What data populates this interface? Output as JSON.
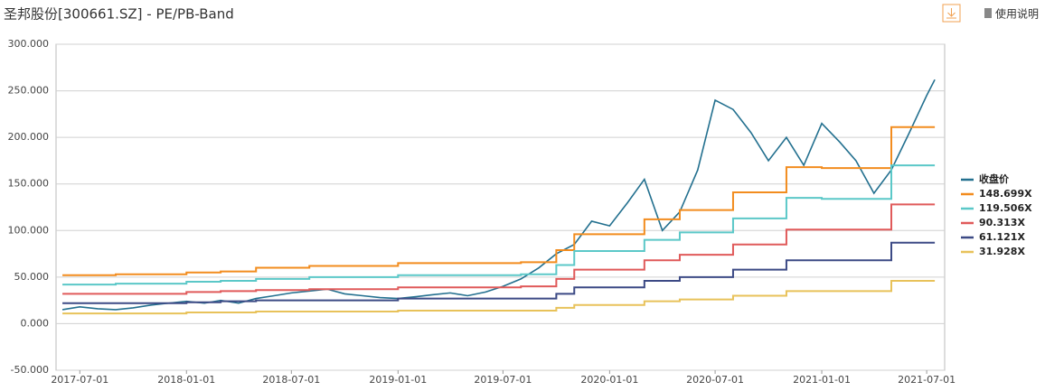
{
  "chart_data": {
    "type": "line",
    "title": "圣邦股份[300661.SZ] - PE/PB-Band",
    "toolbar": {
      "help": "使用说明"
    },
    "x": [
      "2017-06-01",
      "2017-07-01",
      "2017-08-01",
      "2017-09-01",
      "2017-10-01",
      "2017-11-01",
      "2017-12-01",
      "2018-01-01",
      "2018-02-01",
      "2018-03-01",
      "2018-04-01",
      "2018-05-01",
      "2018-06-01",
      "2018-07-01",
      "2018-08-01",
      "2018-09-01",
      "2018-10-01",
      "2018-11-01",
      "2018-12-01",
      "2019-01-01",
      "2019-02-01",
      "2019-03-01",
      "2019-04-01",
      "2019-05-01",
      "2019-06-01",
      "2019-07-01",
      "2019-08-01",
      "2019-09-01",
      "2019-10-01",
      "2019-11-01",
      "2019-12-01",
      "2020-01-01",
      "2020-02-01",
      "2020-03-01",
      "2020-04-01",
      "2020-05-01",
      "2020-06-01",
      "2020-07-01",
      "2020-08-01",
      "2020-09-01",
      "2020-10-01",
      "2020-11-01",
      "2020-12-01",
      "2021-01-01",
      "2021-02-01",
      "2021-03-01",
      "2021-04-01",
      "2021-05-01",
      "2021-06-01",
      "2021-07-01",
      "2021-07-15"
    ],
    "xlim": [
      "2017-05-21",
      "2021-08-01"
    ],
    "xticks": [
      "2017-07-01",
      "2018-01-01",
      "2018-07-01",
      "2019-01-01",
      "2019-07-01",
      "2020-01-01",
      "2020-07-01",
      "2021-01-01",
      "2021-07-01"
    ],
    "ylim": [
      -50,
      300
    ],
    "yticks": [
      {
        "value": -50,
        "label": "-50.000"
      },
      {
        "value": 0,
        "label": "0.000"
      },
      {
        "value": 50,
        "label": "50.000"
      },
      {
        "value": 100,
        "label": "100.000"
      },
      {
        "value": 150,
        "label": "150.000"
      },
      {
        "value": 200,
        "label": "200.000"
      },
      {
        "value": 250,
        "label": "250.000"
      },
      {
        "value": 300,
        "label": "300.000"
      }
    ],
    "grid": true,
    "legend": "right",
    "series": [
      {
        "name": "收盘价",
        "color": "#23708f",
        "values": [
          15,
          18,
          16,
          15,
          17,
          20,
          22,
          24,
          22,
          25,
          22,
          27,
          30,
          33,
          35,
          37,
          32,
          30,
          28,
          27,
          29,
          31,
          33,
          30,
          34,
          40,
          48,
          60,
          75,
          85,
          110,
          105,
          130,
          155,
          100,
          120,
          165,
          240,
          230,
          205,
          175,
          200,
          170,
          215,
          195,
          175,
          140,
          165,
          205,
          245,
          262
        ]
      },
      {
        "name": "148.699X",
        "color": "#f28c1e",
        "step": true,
        "values": [
          52,
          52,
          52,
          53,
          53,
          53,
          53,
          55,
          55,
          56,
          56,
          60,
          60,
          60,
          62,
          62,
          62,
          62,
          62,
          65,
          65,
          65,
          65,
          65,
          65,
          65,
          66,
          66,
          79,
          96,
          96,
          96,
          96,
          112,
          112,
          122,
          122,
          122,
          141,
          141,
          141,
          168,
          168,
          167,
          167,
          167,
          167,
          211,
          211,
          211,
          211
        ]
      },
      {
        "name": "119.506X",
        "color": "#5bc8c8",
        "step": true,
        "values": [
          42,
          42,
          42,
          43,
          43,
          43,
          43,
          45,
          45,
          46,
          46,
          48,
          48,
          48,
          50,
          50,
          50,
          50,
          50,
          52,
          52,
          52,
          52,
          52,
          52,
          52,
          53,
          53,
          63,
          78,
          78,
          78,
          78,
          90,
          90,
          98,
          98,
          98,
          113,
          113,
          113,
          135,
          135,
          134,
          134,
          134,
          134,
          170,
          170,
          170,
          170
        ]
      },
      {
        "name": "90.313X",
        "color": "#e05a5a",
        "step": true,
        "values": [
          32,
          32,
          32,
          32,
          32,
          32,
          32,
          34,
          34,
          35,
          35,
          36,
          36,
          36,
          37,
          37,
          37,
          37,
          37,
          39,
          39,
          39,
          39,
          39,
          39,
          39,
          40,
          40,
          48,
          58,
          58,
          58,
          58,
          68,
          68,
          74,
          74,
          74,
          85,
          85,
          85,
          101,
          101,
          101,
          101,
          101,
          101,
          128,
          128,
          128,
          128
        ]
      },
      {
        "name": "61.121X",
        "color": "#3c4a85",
        "step": true,
        "values": [
          22,
          22,
          22,
          22,
          22,
          22,
          22,
          23,
          23,
          24,
          24,
          25,
          25,
          25,
          25,
          25,
          25,
          25,
          25,
          27,
          27,
          27,
          27,
          27,
          27,
          27,
          27,
          27,
          32,
          39,
          39,
          39,
          39,
          46,
          46,
          50,
          50,
          50,
          58,
          58,
          58,
          68,
          68,
          68,
          68,
          68,
          68,
          87,
          87,
          87,
          87
        ]
      },
      {
        "name": "31.928X",
        "color": "#e8c25a",
        "step": true,
        "values": [
          11,
          11,
          11,
          11,
          11,
          11,
          11,
          12,
          12,
          12,
          12,
          13,
          13,
          13,
          13,
          13,
          13,
          13,
          13,
          14,
          14,
          14,
          14,
          14,
          14,
          14,
          14,
          14,
          17,
          20,
          20,
          20,
          20,
          24,
          24,
          26,
          26,
          26,
          30,
          30,
          30,
          35,
          35,
          35,
          35,
          35,
          35,
          46,
          46,
          46,
          46
        ]
      }
    ]
  }
}
